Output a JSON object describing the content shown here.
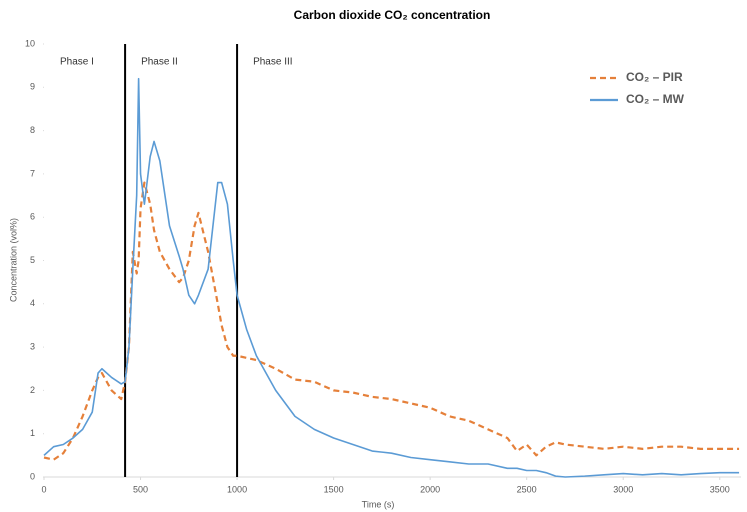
{
  "chart_data": {
    "type": "line",
    "title": "Carbon dioxide CO₂ concentration",
    "x_label": "Time (s)",
    "y_label": "Concentration (vol%)",
    "xlim": [
      0,
      3610
    ],
    "xticks": [
      0,
      500,
      1000,
      1500,
      2000,
      2500,
      3000,
      3500
    ],
    "ylim": [
      0,
      10
    ],
    "yticks": [
      0,
      1,
      2,
      3,
      4,
      5,
      6,
      7,
      8,
      9,
      10
    ],
    "grid": false,
    "legend": "upper right",
    "phase_labels": [
      "Phase I",
      "Phase II",
      "Phase III"
    ],
    "phase_boundaries": [
      420,
      1000
    ],
    "x": [
      0,
      50,
      100,
      150,
      200,
      250,
      280,
      300,
      350,
      400,
      420,
      440,
      460,
      480,
      490,
      500,
      520,
      550,
      570,
      600,
      650,
      700,
      720,
      750,
      780,
      800,
      850,
      900,
      920,
      950,
      980,
      1000,
      1050,
      1100,
      1200,
      1300,
      1400,
      1500,
      1600,
      1700,
      1800,
      1900,
      2000,
      2100,
      2200,
      2300,
      2400,
      2450,
      2500,
      2550,
      2600,
      2650,
      2700,
      2800,
      2900,
      3000,
      3100,
      3200,
      3300,
      3400,
      3500,
      3600
    ],
    "series": [
      {
        "name": "CO₂ – PIR",
        "color": "#e5803a",
        "style": "dashed",
        "values": [
          0.45,
          0.4,
          0.55,
          0.9,
          1.4,
          2.0,
          2.3,
          2.4,
          2.0,
          1.8,
          2.2,
          3.0,
          5.2,
          4.7,
          5.0,
          6.2,
          6.8,
          6.3,
          5.7,
          5.2,
          4.8,
          4.5,
          4.6,
          5.0,
          5.8,
          6.1,
          5.2,
          4.0,
          3.5,
          3.0,
          2.8,
          2.8,
          2.75,
          2.7,
          2.5,
          2.25,
          2.2,
          2.0,
          1.95,
          1.85,
          1.8,
          1.7,
          1.6,
          1.4,
          1.3,
          1.1,
          0.9,
          0.6,
          0.75,
          0.5,
          0.7,
          0.8,
          0.75,
          0.7,
          0.65,
          0.7,
          0.65,
          0.7,
          0.7,
          0.65,
          0.65,
          0.65
        ]
      },
      {
        "name": "CO₂ – MW",
        "color": "#5b9bd5",
        "style": "solid",
        "values": [
          0.5,
          0.7,
          0.75,
          0.9,
          1.1,
          1.5,
          2.4,
          2.5,
          2.3,
          2.15,
          2.2,
          3.0,
          4.8,
          6.5,
          9.2,
          7.0,
          6.3,
          7.4,
          7.75,
          7.3,
          5.8,
          5.1,
          4.8,
          4.2,
          4.0,
          4.2,
          4.8,
          6.8,
          6.8,
          6.3,
          5.0,
          4.2,
          3.4,
          2.8,
          2.0,
          1.4,
          1.1,
          0.9,
          0.75,
          0.6,
          0.55,
          0.45,
          0.4,
          0.35,
          0.3,
          0.3,
          0.2,
          0.2,
          0.15,
          0.15,
          0.1,
          0.02,
          0.0,
          0.02,
          0.05,
          0.08,
          0.05,
          0.08,
          0.05,
          0.08,
          0.1,
          0.1
        ]
      }
    ]
  }
}
